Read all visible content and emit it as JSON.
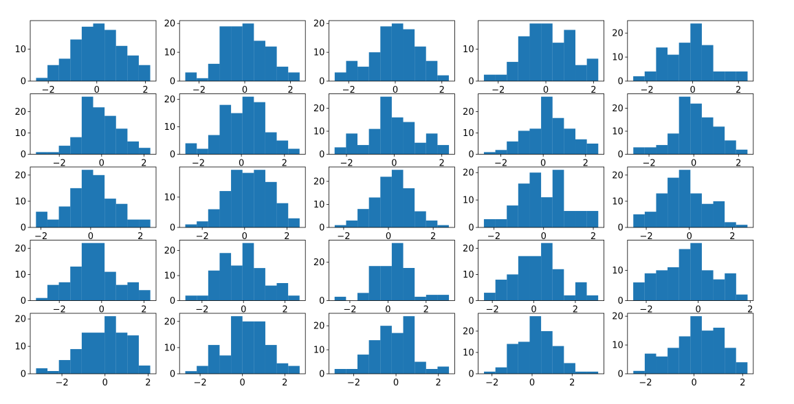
{
  "chart_data": [
    {
      "type": "histogram",
      "color": "#1f77b4",
      "bins": [
        -2.5,
        -2.03,
        -1.56,
        -1.09,
        -0.62,
        -0.15,
        0.32,
        0.79,
        1.26,
        1.73,
        2.2
      ],
      "counts": [
        1,
        5,
        7,
        13,
        17,
        18,
        16,
        11,
        8,
        5
      ],
      "xlim": [
        -2.74,
        2.44
      ],
      "ylim": [
        0,
        18.9
      ],
      "xticks": [
        {
          "value": -2,
          "label": "−2"
        },
        0,
        2
      ],
      "yticks": [
        0,
        10
      ]
    },
    {
      "type": "histogram",
      "color": "#1f77b4",
      "bins": [
        -2.6,
        -2.1,
        -1.6,
        -1.1,
        -0.6,
        -0.1,
        0.4,
        0.9,
        1.4,
        1.9,
        2.4
      ],
      "counts": [
        3,
        1,
        6,
        19,
        19,
        20,
        14,
        12,
        5,
        3
      ],
      "xlim": [
        -2.85,
        2.65
      ],
      "ylim": [
        0,
        21
      ],
      "xticks": [
        {
          "value": -2,
          "label": "−2"
        },
        0,
        2
      ],
      "yticks": [
        0,
        10,
        20
      ]
    },
    {
      "type": "histogram",
      "color": "#1f77b4",
      "bins": [
        -2.6,
        -2.11,
        -1.62,
        -1.13,
        -0.64,
        -0.15,
        0.34,
        0.83,
        1.32,
        1.81,
        2.3
      ],
      "counts": [
        3,
        7,
        5,
        10,
        19,
        20,
        18,
        12,
        7,
        2
      ],
      "xlim": [
        -2.85,
        2.55
      ],
      "ylim": [
        0,
        21
      ],
      "xticks": [
        {
          "value": -2,
          "label": "−2"
        },
        0,
        2
      ],
      "yticks": [
        0,
        10,
        20
      ]
    },
    {
      "type": "histogram",
      "color": "#1f77b4",
      "bins": [
        -2.6,
        -2.12,
        -1.64,
        -1.16,
        -0.68,
        -0.2,
        0.28,
        0.76,
        1.24,
        1.72,
        2.2
      ],
      "counts": [
        2,
        2,
        6,
        14,
        18,
        18,
        12,
        16,
        5,
        7
      ],
      "xlim": [
        -2.84,
        2.44
      ],
      "ylim": [
        0,
        18.9
      ],
      "xticks": [
        {
          "value": -2,
          "label": "−2"
        },
        0,
        2
      ],
      "yticks": [
        0,
        10
      ]
    },
    {
      "type": "histogram",
      "color": "#1f77b4",
      "bins": [
        -2.6,
        -2.1,
        -1.6,
        -1.1,
        -0.6,
        -0.1,
        0.4,
        0.9,
        1.4,
        1.9,
        2.4
      ],
      "counts": [
        2,
        4,
        14,
        11,
        16,
        24,
        15,
        4,
        4,
        4
      ],
      "xlim": [
        -2.85,
        2.65
      ],
      "ylim": [
        0,
        25.2
      ],
      "xticks": [
        {
          "value": -2,
          "label": "−2"
        },
        0,
        2
      ],
      "yticks": [
        0,
        10,
        20
      ]
    },
    {
      "type": "histogram",
      "color": "#1f77b4",
      "bins": [
        -3.1,
        -2.56,
        -2.02,
        -1.48,
        -0.94,
        -0.4,
        0.14,
        0.68,
        1.22,
        1.76,
        2.3
      ],
      "counts": [
        1,
        1,
        4,
        8,
        27,
        22,
        18,
        12,
        6,
        3
      ],
      "xlim": [
        -3.37,
        2.57
      ],
      "ylim": [
        0,
        28.35
      ],
      "xticks": [
        {
          "value": -2,
          "label": "−2"
        },
        0,
        2
      ],
      "yticks": [
        0,
        10,
        20
      ]
    },
    {
      "type": "histogram",
      "color": "#1f77b4",
      "bins": [
        -2.6,
        -2.07,
        -1.54,
        -1.01,
        -0.48,
        0.05,
        0.58,
        1.11,
        1.64,
        2.17,
        2.7
      ],
      "counts": [
        4,
        2,
        7,
        18,
        15,
        21,
        19,
        8,
        5,
        2
      ],
      "xlim": [
        -2.87,
        2.97
      ],
      "ylim": [
        0,
        22.05
      ],
      "xticks": [
        {
          "value": -2,
          "label": "−2"
        },
        0,
        2
      ],
      "yticks": [
        0,
        10,
        20
      ]
    },
    {
      "type": "histogram",
      "color": "#1f77b4",
      "bins": [
        -2.5,
        -2.02,
        -1.54,
        -1.06,
        -0.58,
        -0.1,
        0.38,
        0.86,
        1.34,
        1.82,
        2.3
      ],
      "counts": [
        3,
        9,
        4,
        11,
        25,
        16,
        14,
        5,
        9,
        4
      ],
      "xlim": [
        -2.74,
        2.54
      ],
      "ylim": [
        0,
        26.25
      ],
      "xticks": [
        {
          "value": -2,
          "label": "−2"
        },
        0,
        2
      ],
      "yticks": [
        0,
        10,
        20
      ]
    },
    {
      "type": "histogram",
      "color": "#1f77b4",
      "bins": [
        -2.8,
        -2.26,
        -1.72,
        -1.18,
        -0.64,
        -0.1,
        0.44,
        0.98,
        1.52,
        2.06,
        2.6
      ],
      "counts": [
        1,
        2,
        6,
        11,
        12,
        27,
        17,
        12,
        7,
        5
      ],
      "xlim": [
        -3.07,
        2.87
      ],
      "ylim": [
        0,
        28.35
      ],
      "xticks": [
        {
          "value": -2,
          "label": "−2"
        },
        0,
        2
      ],
      "yticks": [
        0,
        10,
        20
      ]
    },
    {
      "type": "histogram",
      "color": "#1f77b4",
      "bins": [
        -2.7,
        -2.19,
        -1.68,
        -1.17,
        -0.66,
        -0.15,
        0.36,
        0.87,
        1.38,
        1.89,
        2.4
      ],
      "counts": [
        3,
        3,
        4,
        9,
        25,
        22,
        16,
        12,
        6,
        2
      ],
      "xlim": [
        -2.96,
        2.66
      ],
      "ylim": [
        0,
        26.25
      ],
      "xticks": [
        {
          "value": -2,
          "label": "−2"
        },
        0,
        2
      ],
      "yticks": [
        0,
        10,
        20
      ]
    },
    {
      "type": "histogram",
      "color": "#1f77b4",
      "bins": [
        -2.2,
        -1.74,
        -1.28,
        -0.82,
        -0.36,
        0.1,
        0.56,
        1.02,
        1.48,
        1.94,
        2.4
      ],
      "counts": [
        6,
        3,
        8,
        15,
        22,
        20,
        11,
        9,
        3,
        3
      ],
      "xlim": [
        -2.43,
        2.63
      ],
      "ylim": [
        0,
        23.1
      ],
      "xticks": [
        {
          "value": -2,
          "label": "−2"
        },
        0,
        2
      ],
      "yticks": [
        0,
        10,
        20
      ]
    },
    {
      "type": "histogram",
      "color": "#1f77b4",
      "bins": [
        -2.8,
        -2.26,
        -1.72,
        -1.18,
        -0.64,
        -0.1,
        0.44,
        0.98,
        1.52,
        2.06,
        2.6
      ],
      "counts": [
        1,
        2,
        6,
        12,
        19,
        18,
        19,
        15,
        8,
        3
      ],
      "xlim": [
        -3.07,
        2.87
      ],
      "ylim": [
        0,
        19.95
      ],
      "xticks": [
        {
          "value": -2,
          "label": "−2"
        },
        0,
        2
      ],
      "yticks": [
        0,
        10
      ]
    },
    {
      "type": "histogram",
      "color": "#1f77b4",
      "bins": [
        -2.4,
        -1.89,
        -1.38,
        -0.87,
        -0.36,
        0.15,
        0.66,
        1.17,
        1.68,
        2.19,
        2.7
      ],
      "counts": [
        1,
        3,
        8,
        13,
        22,
        25,
        17,
        7,
        3,
        1
      ],
      "xlim": [
        -2.66,
        2.96
      ],
      "ylim": [
        0,
        26.25
      ],
      "xticks": [
        {
          "value": -2,
          "label": "−2"
        },
        0,
        2
      ],
      "yticks": [
        0,
        10,
        20
      ]
    },
    {
      "type": "histogram",
      "color": "#1f77b4",
      "bins": [
        -2.4,
        -1.94,
        -1.48,
        -1.02,
        -0.56,
        -0.1,
        0.36,
        0.82,
        1.28,
        1.74,
        2.2
      ],
      "counts": [
        3,
        3,
        8,
        16,
        20,
        11,
        21,
        6,
        6,
        6
      ],
      "xlim": [
        -2.63,
        2.43
      ],
      "ylim": [
        0,
        22.05
      ],
      "xticks": [
        {
          "value": -2,
          "label": "−2"
        },
        0,
        2
      ],
      "yticks": [
        0,
        10,
        20
      ]
    },
    {
      "type": "histogram",
      "color": "#1f77b4",
      "bins": [
        -2.6,
        -2.07,
        -1.54,
        -1.01,
        -0.48,
        0.05,
        0.58,
        1.11,
        1.64,
        2.17,
        2.7
      ],
      "counts": [
        5,
        6,
        13,
        19,
        22,
        13,
        9,
        10,
        2,
        1
      ],
      "xlim": [
        -2.87,
        2.97
      ],
      "ylim": [
        0,
        23.1
      ],
      "xticks": [
        {
          "value": -2,
          "label": "−2"
        },
        0,
        2
      ],
      "yticks": [
        0,
        10,
        20
      ]
    },
    {
      "type": "histogram",
      "color": "#1f77b4",
      "bins": [
        -3.1,
        -2.56,
        -2.02,
        -1.48,
        -0.94,
        -0.4,
        0.14,
        0.68,
        1.22,
        1.76,
        2.3
      ],
      "counts": [
        1,
        6,
        7,
        13,
        22,
        22,
        11,
        6,
        7,
        4
      ],
      "xlim": [
        -3.37,
        2.57
      ],
      "ylim": [
        0,
        23.1
      ],
      "xticks": [
        {
          "value": -2,
          "label": "−2"
        },
        0,
        2
      ],
      "yticks": [
        0,
        10,
        20
      ]
    },
    {
      "type": "histogram",
      "color": "#1f77b4",
      "bins": [
        -2.8,
        -2.25,
        -1.7,
        -1.15,
        -0.6,
        -0.05,
        0.5,
        1.05,
        1.6,
        2.15,
        2.7
      ],
      "counts": [
        2,
        2,
        12,
        19,
        14,
        23,
        13,
        6,
        7,
        2
      ],
      "xlim": [
        -3.08,
        2.98
      ],
      "ylim": [
        0,
        24.15
      ],
      "xticks": [
        {
          "value": -2,
          "label": "−2"
        },
        0,
        2
      ],
      "yticks": [
        0,
        10,
        20
      ]
    },
    {
      "type": "histogram",
      "color": "#1f77b4",
      "bins": [
        -2.8,
        -2.2,
        -1.6,
        -1,
        -0.4,
        0.2,
        0.8,
        1.4,
        2,
        2.6,
        3.2
      ],
      "counts": [
        2,
        0,
        4,
        18,
        18,
        30,
        17,
        2,
        3,
        3
      ],
      "xlim": [
        -3.1,
        3.5
      ],
      "ylim": [
        0,
        31.5
      ],
      "xticks": [
        {
          "value": -2,
          "label": "−2"
        },
        0,
        2
      ],
      "yticks": [
        0,
        20
      ]
    },
    {
      "type": "histogram",
      "color": "#1f77b4",
      "bins": [
        -2.4,
        -1.85,
        -1.3,
        -0.75,
        -0.2,
        0.35,
        0.9,
        1.45,
        2,
        2.55,
        3.1
      ],
      "counts": [
        3,
        8,
        10,
        17,
        17,
        22,
        12,
        2,
        7,
        2
      ],
      "xlim": [
        -2.68,
        3.38
      ],
      "ylim": [
        0,
        23.1
      ],
      "xticks": [
        {
          "value": -2,
          "label": "−2"
        },
        0,
        2
      ],
      "yticks": [
        0,
        10,
        20
      ]
    },
    {
      "type": "histogram",
      "color": "#1f77b4",
      "bins": [
        -2.5,
        -2.06,
        -1.62,
        -1.18,
        -0.74,
        -0.3,
        0.14,
        0.58,
        1.02,
        1.46,
        1.9
      ],
      "counts": [
        6,
        9,
        10,
        11,
        17,
        19,
        10,
        7,
        9,
        2
      ],
      "xlim": [
        -2.72,
        2.12
      ],
      "ylim": [
        0,
        19.95
      ],
      "xticks": [
        {
          "value": -2,
          "label": "−2"
        },
        0,
        2
      ],
      "yticks": [
        0,
        10
      ]
    },
    {
      "type": "histogram",
      "color": "#1f77b4",
      "bins": [
        -3.2,
        -2.67,
        -2.14,
        -1.61,
        -1.08,
        -0.55,
        -0.02,
        0.51,
        1.04,
        1.57,
        2.1
      ],
      "counts": [
        2,
        1,
        5,
        9,
        15,
        15,
        21,
        15,
        14,
        3
      ],
      "xlim": [
        -3.47,
        2.37
      ],
      "ylim": [
        0,
        22.05
      ],
      "xticks": [
        {
          "value": -2,
          "label": "−2"
        },
        0,
        2
      ],
      "yticks": [
        0,
        10,
        20
      ]
    },
    {
      "type": "histogram",
      "color": "#1f77b4",
      "bins": [
        -2.7,
        -2.16,
        -1.62,
        -1.08,
        -0.54,
        0,
        0.54,
        1.08,
        1.62,
        2.16,
        2.7
      ],
      "counts": [
        1,
        3,
        11,
        7,
        22,
        20,
        20,
        11,
        4,
        3
      ],
      "xlim": [
        -2.97,
        2.97
      ],
      "ylim": [
        0,
        23.1
      ],
      "xticks": [
        {
          "value": -2,
          "label": "−2"
        },
        0,
        2
      ],
      "yticks": [
        0,
        10,
        20
      ]
    },
    {
      "type": "histogram",
      "color": "#1f77b4",
      "bins": [
        -2.9,
        -2.36,
        -1.82,
        -1.28,
        -0.74,
        -0.2,
        0.34,
        0.88,
        1.42,
        1.96,
        2.5
      ],
      "counts": [
        2,
        2,
        8,
        14,
        20,
        17,
        24,
        5,
        2,
        3
      ],
      "xlim": [
        -3.17,
        2.77
      ],
      "ylim": [
        0,
        25.2
      ],
      "xticks": [
        {
          "value": -2,
          "label": "−2"
        },
        0,
        2
      ],
      "yticks": [
        0,
        10,
        20
      ]
    },
    {
      "type": "histogram",
      "color": "#1f77b4",
      "bins": [
        -2.4,
        -1.83,
        -1.26,
        -0.69,
        -0.12,
        0.45,
        1.02,
        1.59,
        2.16,
        2.73,
        3.3
      ],
      "counts": [
        1,
        3,
        14,
        15,
        27,
        20,
        13,
        5,
        1,
        1
      ],
      "xlim": [
        -2.69,
        3.59
      ],
      "ylim": [
        0,
        28.35
      ],
      "xticks": [
        {
          "value": -2,
          "label": "−2"
        },
        0,
        2
      ],
      "yticks": [
        0,
        10,
        20
      ]
    },
    {
      "type": "histogram",
      "color": "#1f77b4",
      "bins": [
        -2.5,
        -2.03,
        -1.56,
        -1.09,
        -0.62,
        -0.15,
        0.32,
        0.79,
        1.26,
        1.73,
        2.2
      ],
      "counts": [
        1,
        7,
        6,
        9,
        13,
        20,
        15,
        16,
        9,
        4
      ],
      "xlim": [
        -2.74,
        2.44
      ],
      "ylim": [
        0,
        21
      ],
      "xticks": [
        {
          "value": -2,
          "label": "−2"
        },
        0,
        2
      ],
      "yticks": [
        0,
        10,
        20
      ]
    }
  ]
}
